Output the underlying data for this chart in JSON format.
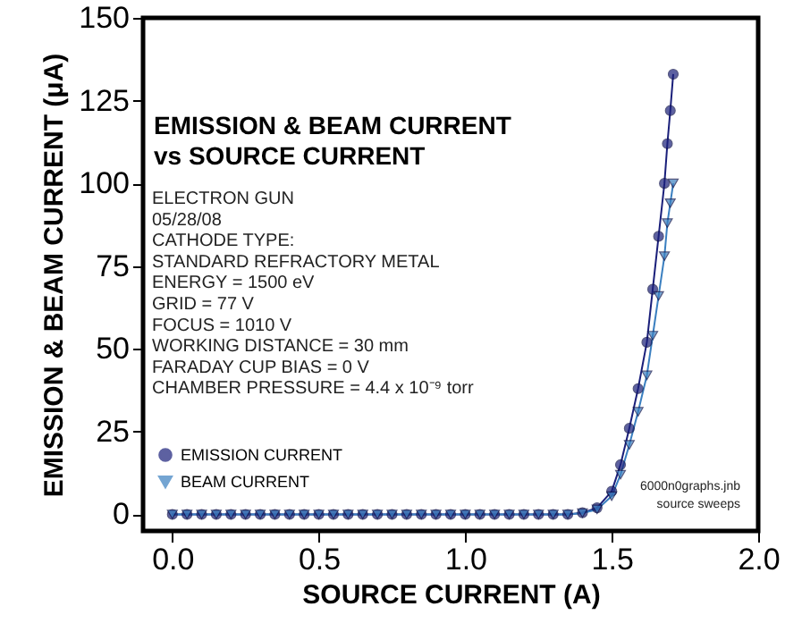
{
  "chart_data": {
    "type": "line",
    "title": "EMISSION & BEAM CURRENT vs SOURCE CURRENT",
    "xlabel": "SOURCE CURRENT (A)",
    "ylabel": "EMISSION & BEAM CURRENT (μA)",
    "annotations": [
      "ELECTRON GUN",
      "05/28/08",
      "CATHODE TYPE:",
      "STANDARD REFRACTORY METAL",
      "ENERGY = 1500 eV",
      "GRID = 77 V",
      "FOCUS = 1010 V",
      "WORKING DISTANCE = 30 mm",
      "FARADAY CUP BIAS = 0 V",
      "CHAMBER PRESSURE = 4.4 x 10⁻⁹ torr",
      "6000n0graphs.jnb",
      "source sweeps"
    ],
    "x": [
      0,
      0.05,
      0.1,
      0.15,
      0.2,
      0.25,
      0.3,
      0.35,
      0.4,
      0.45,
      0.5,
      0.55,
      0.6,
      0.65,
      0.7,
      0.75,
      0.8,
      0.85,
      0.9,
      0.95,
      1.0,
      1.05,
      1.1,
      1.15,
      1.2,
      1.25,
      1.3,
      1.35,
      1.4,
      1.45,
      1.5,
      1.53,
      1.56,
      1.59,
      1.62,
      1.64,
      1.66,
      1.68,
      1.69,
      1.7,
      1.71
    ],
    "series": [
      {
        "name": "EMISSION CURRENT",
        "color": "#1a1f7a",
        "marker": "circle",
        "values": [
          0,
          0,
          0,
          0,
          0,
          0,
          0,
          0,
          0,
          0,
          0,
          0,
          0,
          0,
          0,
          0,
          0,
          0,
          0,
          0,
          0,
          0,
          0,
          0,
          0,
          0,
          0,
          0,
          0.5,
          2,
          7,
          15,
          26,
          38,
          52,
          68,
          84,
          100,
          112,
          122,
          133
        ]
      },
      {
        "name": "BEAM CURRENT",
        "color": "#3a7fc0",
        "marker": "triangle",
        "values": [
          0,
          0,
          0,
          0,
          0,
          0,
          0,
          0,
          0,
          0,
          0,
          0,
          0,
          0,
          0,
          0,
          0,
          0,
          0,
          0,
          0,
          0,
          0,
          0,
          0,
          0,
          0,
          0,
          0.4,
          1.5,
          5.5,
          12,
          21,
          31,
          42,
          54,
          66,
          78,
          88,
          94,
          100
        ]
      }
    ],
    "xlim": [
      -0.1,
      2.0
    ],
    "ylim": [
      -5,
      150
    ],
    "xticks": [
      {
        "value": 0,
        "label": "0.0"
      },
      0.5,
      {
        "value": 1,
        "label": "1.0"
      },
      1.5,
      {
        "value": 2,
        "label": "2.0"
      }
    ],
    "yticks": [
      0,
      25,
      50,
      75,
      100,
      125,
      150
    ],
    "grid": false,
    "legend": "bottom left"
  }
}
